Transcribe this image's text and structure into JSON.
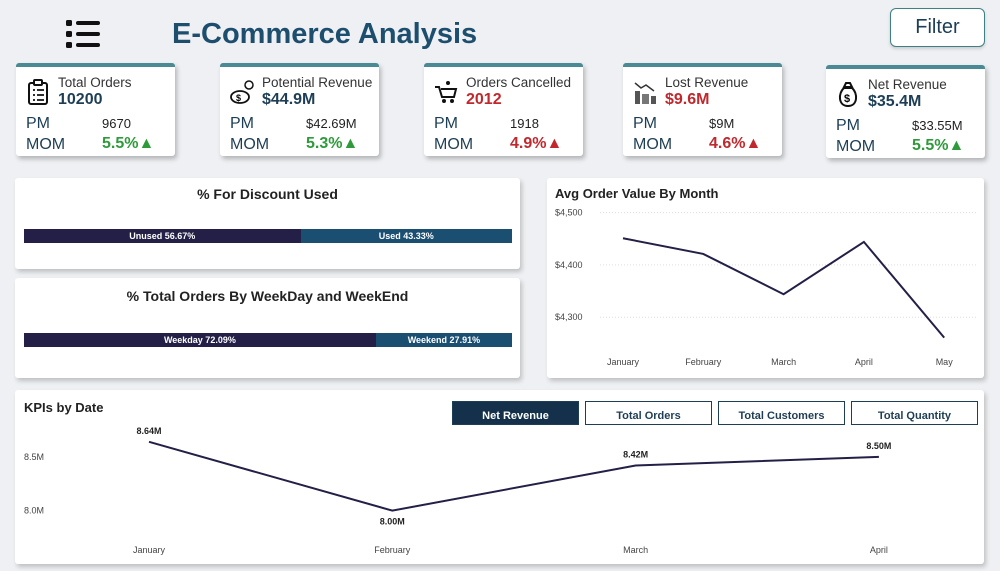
{
  "header": {
    "title": "E-Commerce Analysis",
    "filter_label": "Filter",
    "menu_icon": "hamburger-list-icon"
  },
  "cards": [
    {
      "label": "Total Orders",
      "value": "10200",
      "pm_label": "PM",
      "pm": "9670",
      "mom_label": "MOM",
      "mom": "5.5%▲",
      "value_color": "#1d3e55",
      "mom_color": "#2e9a3a",
      "icon": "clipboard-icon"
    },
    {
      "label": "Potential Revenue",
      "value": "$44.9M",
      "pm_label": "PM",
      "pm": "$42.69M",
      "mom_label": "MOM",
      "mom": "5.3%▲",
      "value_color": "#1d3e55",
      "mom_color": "#2e9a3a",
      "icon": "money-coins-icon"
    },
    {
      "label": "Orders Cancelled",
      "value": "2012",
      "pm_label": "PM",
      "pm": "1918",
      "mom_label": "MOM",
      "mom": "4.9%▲",
      "value_color": "#c0282d",
      "mom_color": "#c0282d",
      "icon": "cart-icon"
    },
    {
      "label": "Lost Revenue",
      "value": "$9.6M",
      "pm_label": "PM",
      "pm": "$9M",
      "mom_label": "MOM",
      "mom": "4.6%▲",
      "value_color": "#c0282d",
      "mom_color": "#c0282d",
      "icon": "declining-money-icon"
    },
    {
      "label": "Net Revenue",
      "value": "$35.4M",
      "pm_label": "PM",
      "pm": "$33.55M",
      "mom_label": "MOM",
      "mom": "5.5%▲",
      "value_color": "#1d3e55",
      "mom_color": "#2e9a3a",
      "icon": "money-bag-icon"
    }
  ],
  "discount": {
    "title": "% For Discount Used",
    "segments": [
      {
        "label": "Unused 56.67%",
        "pct": 56.67,
        "color": "#231f46"
      },
      {
        "label": "Used 43.33%",
        "pct": 43.33,
        "color": "#1b4f72"
      }
    ]
  },
  "weekday": {
    "title": "% Total Orders By WeekDay and WeekEnd",
    "segments": [
      {
        "label": "Weekday 72.09%",
        "pct": 72.09,
        "color": "#231f46"
      },
      {
        "label": "Weekend 27.91%",
        "pct": 27.91,
        "color": "#1b4f72"
      }
    ]
  },
  "chart_data": [
    {
      "type": "line",
      "title": "Avg Order Value By Month",
      "categories": [
        "January",
        "February",
        "March",
        "April",
        "May"
      ],
      "values": [
        4451,
        4421,
        4344,
        4444,
        4261
      ],
      "yticks": [
        "$4,500",
        "$4,400",
        "$4,300"
      ],
      "ytick_values": [
        4500,
        4400,
        4300
      ],
      "ylim": [
        4245,
        4505
      ],
      "grid": true,
      "color": "#231f46"
    },
    {
      "type": "line",
      "title": "KPIs by Date",
      "categories": [
        "January",
        "February",
        "March",
        "April"
      ],
      "values": [
        8.64,
        8.0,
        8.42,
        8.5
      ],
      "data_labels": [
        "8.64M",
        "8.00M",
        "8.42M",
        "8.50M"
      ],
      "yticks": [
        "8.5M",
        "8.0M"
      ],
      "ytick_values": [
        8.5,
        8.0
      ],
      "ylim": [
        7.95,
        8.75
      ],
      "color": "#231f46"
    }
  ],
  "kpi_buttons": [
    {
      "label": "Net Revenue",
      "active": true
    },
    {
      "label": "Total Orders",
      "active": false
    },
    {
      "label": "Total Customers",
      "active": false
    },
    {
      "label": "Total Quantity",
      "active": false
    }
  ]
}
